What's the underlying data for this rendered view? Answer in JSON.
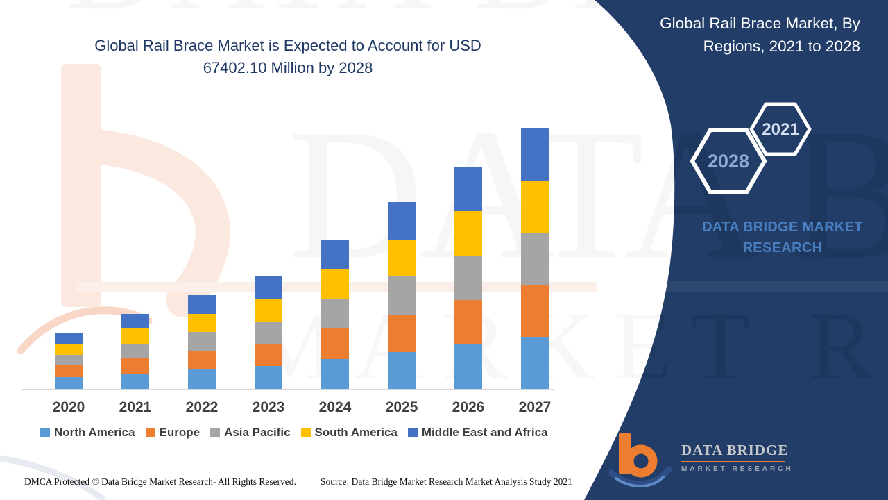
{
  "page": {
    "title_line1": "Global Rail Brace Market is Expected to Account for USD",
    "title_line2": "67402.10 Million by 2028"
  },
  "panel": {
    "title_line1": "Global Rail Brace Market, By",
    "title_line2": "Regions, 2021 to 2028",
    "hexagon_large_label": "2028",
    "hexagon_small_label": "2021",
    "brand_line1": "DATA BRIDGE MARKET",
    "brand_line2": "RESEARCH",
    "colors": {
      "background": "#223E68",
      "brand_text": "#4A80C2",
      "hex_large_text": "#8FA8D8",
      "hex_small_text": "#D5DFF0"
    }
  },
  "watermark": {
    "row1": "DATA BRIDGE",
    "row2": "MARKET RESEARCH"
  },
  "chart_data": {
    "type": "bar",
    "stacked": true,
    "title": "Global Rail Brace Market is Expected to Account for USD 67402.10 Million by 2028",
    "categories": [
      "2020",
      "2021",
      "2022",
      "2023",
      "2024",
      "2025",
      "2026",
      "2027"
    ],
    "series": [
      {
        "name": "North America",
        "color": "#5B9BD5",
        "values": [
          17,
          22,
          28,
          33,
          43,
          53,
          65,
          75
        ]
      },
      {
        "name": "Europe",
        "color": "#ED7D31",
        "values": [
          17,
          22,
          27,
          31,
          45,
          54,
          63,
          74
        ]
      },
      {
        "name": "Asia Pacific",
        "color": "#A5A5A5",
        "values": [
          15,
          20,
          27,
          33,
          41,
          55,
          63,
          76
        ]
      },
      {
        "name": "South America",
        "color": "#FFC000",
        "values": [
          16,
          23,
          26,
          33,
          44,
          52,
          65,
          75
        ]
      },
      {
        "name": "Middle East and Africa",
        "color": "#4472C4",
        "values": [
          16,
          21,
          27,
          33,
          42,
          55,
          64,
          75
        ]
      }
    ],
    "units": "relative height index (no value axis displayed)",
    "xlabel": "",
    "ylabel": "",
    "grid": false,
    "y_axis_visible": false,
    "legend_position": "bottom"
  },
  "footer": {
    "dmca": "DMCA Protected © Data Bridge Market Research- All Rights Reserved.",
    "source": "Source: Data Bridge Market Research Market Analysis Study 2021"
  },
  "logo": {
    "name": "DATA BRIDGE",
    "sub": "MARKET RESEARCH"
  }
}
